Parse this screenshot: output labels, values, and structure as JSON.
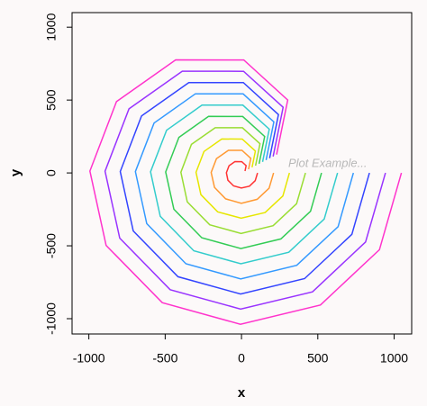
{
  "chart_data": {
    "type": "line",
    "xlabel": "x",
    "ylabel": "y",
    "annotation": "Plot Example...",
    "xlim": [
      -1110,
      1115
    ],
    "ylim": [
      -1105,
      1100
    ],
    "xticks": [
      -1000,
      -500,
      0,
      500,
      1000
    ],
    "yticks": [
      -1000,
      -500,
      0,
      500,
      1000
    ],
    "series": [
      {
        "color": "#ff3333",
        "x": [
          23,
          30,
          2,
          -43,
          -82,
          -99,
          -89,
          -52,
          -1,
          52,
          90,
          105
        ],
        "values": [
          13,
          50,
          77,
          78,
          49,
          1,
          -50,
          -89,
          -104,
          -91,
          -53,
          0
        ]
      },
      {
        "color": "#ff9933",
        "x": [
          46,
          61,
          3,
          -86,
          -164,
          -199,
          -177,
          -104,
          -1,
          103,
          181,
          210
        ],
        "values": [
          25,
          100,
          155,
          155,
          98,
          3,
          -99,
          -178,
          -208,
          -181,
          -105,
          0
        ]
      },
      {
        "color": "#e6e600",
        "x": [
          69,
          91,
          5,
          -129,
          -246,
          -298,
          -266,
          -156,
          -2,
          155,
          271,
          314
        ],
        "values": [
          38,
          150,
          232,
          233,
          147,
          4,
          -149,
          -267,
          -311,
          -272,
          -158,
          0
        ]
      },
      {
        "color": "#99dd33",
        "x": [
          92,
          121,
          6,
          -172,
          -328,
          -397,
          -355,
          -208,
          -3,
          207,
          361,
          419
        ],
        "values": [
          50,
          200,
          310,
          310,
          196,
          5,
          -199,
          -356,
          -415,
          -362,
          -211,
          0
        ]
      },
      {
        "color": "#33cc55",
        "x": [
          115,
          152,
          8,
          -216,
          -410,
          -497,
          -443,
          -260,
          -4,
          258,
          452,
          524
        ],
        "values": [
          63,
          250,
          387,
          388,
          244,
          7,
          -249,
          -445,
          -519,
          -453,
          -263,
          0
        ]
      },
      {
        "color": "#33cccc",
        "x": [
          138,
          182,
          9,
          -259,
          -491,
          -596,
          -532,
          -312,
          -4,
          310,
          542,
          629
        ],
        "values": [
          76,
          300,
          465,
          465,
          293,
          8,
          -298,
          -534,
          -623,
          -544,
          -316,
          0
        ]
      },
      {
        "color": "#3399ff",
        "x": [
          161,
          212,
          11,
          -302,
          -573,
          -695,
          -621,
          -364,
          -5,
          362,
          633,
          733
        ],
        "values": [
          88,
          350,
          542,
          543,
          342,
          9,
          -348,
          -623,
          -727,
          -634,
          -369,
          0
        ]
      },
      {
        "color": "#3344ff",
        "x": [
          184,
          242,
          12,
          -345,
          -655,
          -794,
          -709,
          -416,
          -6,
          413,
          723,
          838
        ],
        "values": [
          101,
          400,
          620,
          620,
          391,
          10,
          -398,
          -712,
          -831,
          -725,
          -421,
          0
        ]
      },
      {
        "color": "#9933ff",
        "x": [
          207,
          273,
          14,
          -388,
          -737,
          -894,
          -798,
          -467,
          -6,
          465,
          813,
          943
        ],
        "values": [
          113,
          450,
          697,
          698,
          440,
          12,
          -447,
          -801,
          -934,
          -816,
          -474,
          0
        ]
      },
      {
        "color": "#ff33cc",
        "x": [
          230,
          303,
          15,
          -431,
          -819,
          -993,
          -887,
          -519,
          -7,
          517,
          904,
          1048
        ],
        "values": [
          126,
          500,
          775,
          776,
          489,
          13,
          -497,
          -890,
          -1038,
          -906,
          -527,
          0
        ]
      }
    ]
  }
}
